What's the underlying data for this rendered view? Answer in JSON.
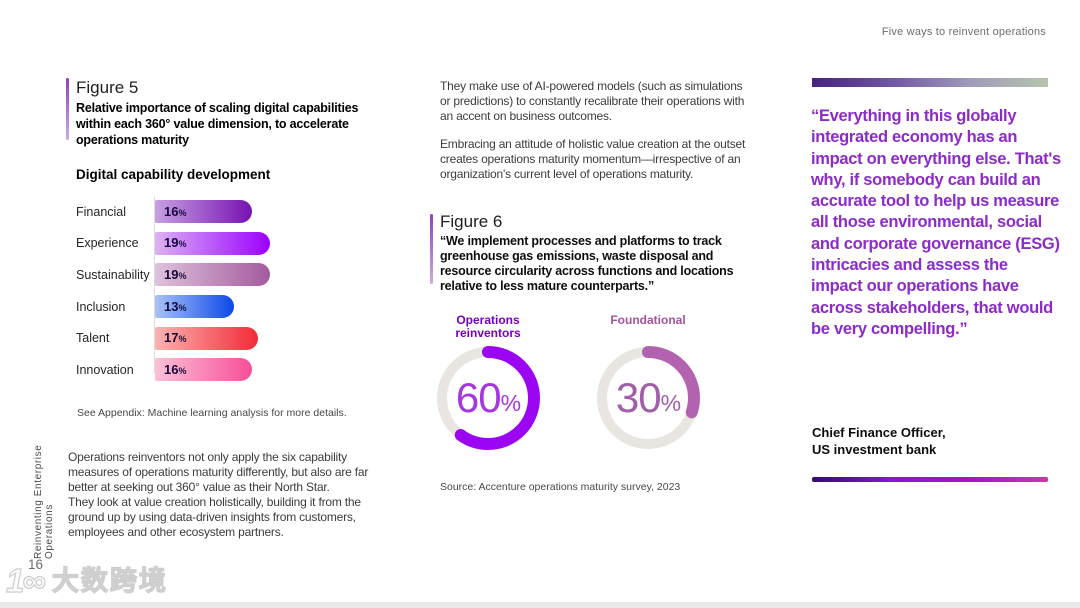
{
  "page": {
    "header": "Five ways to reinvent operations",
    "page_number": "16",
    "sidebar_vertical_text": "Reinventing Enterprise Operations",
    "watermark_logo": "1∞",
    "watermark_text": "大数跨境"
  },
  "theme": {
    "figure_accent": [
      "#8f3fc4",
      "#cfaae2"
    ],
    "top_bar": [
      "#482180",
      "#6f55a4",
      "#9f9ab8",
      "#b6c5ad"
    ],
    "bottom_bar": [
      "#340b6e",
      "#7e1bd4",
      "#a811c8",
      "#c93aa6"
    ]
  },
  "left": {
    "figure_label": "Figure 5",
    "figure_title": "Relative importance of scaling digital capabilities within each 360° value dimension, to accelerate operations maturity",
    "chart_heading": "Digital capability development",
    "footnote": "See Appendix: Machine learning analysis for more details.",
    "paragraph": "Operations reinventors not only apply the six capability measures of operations maturity differently, but also are far better at seeking out 360° value as their North Star.\nThey look at value creation holistically, building it from the ground up by using data-driven insights from customers, employees and other ecosystem partners."
  },
  "middle": {
    "para1": "They make use of AI-powered models (such as simulations or predictions) to constantly recalibrate their operations with an accent on business outcomes.",
    "para2": "Embracing an attitude of holistic value creation at the outset creates operations maturity momentum—irrespective of an organization's current level of operations maturity.",
    "figure_label": "Figure 6",
    "figure_quote": "“We implement processes and platforms to track greenhouse gas emissions, waste disposal and resource circularity across functions and locations relative to less mature counterparts.”",
    "source": "Source: Accenture operations maturity survey, 2023"
  },
  "right": {
    "quote": "“Everything in this globally integrated economy has an impact on everything else. That's why, if somebody can build an accurate tool to help us measure all those environmental, social and corporate governance (ESG) intricacies and assess the impact our operations have across stakeholders, that would be very compelling.”",
    "quote_color": "#8c2bc9",
    "attribution": "Chief Finance Officer,\nUS investment bank"
  },
  "chart_data": [
    {
      "type": "bar",
      "orientation": "horizontal",
      "title": "Digital capability development",
      "categories": [
        "Financial",
        "Experience",
        "Sustainability",
        "Inclusion",
        "Talent",
        "Innovation"
      ],
      "values": [
        16,
        19,
        19,
        13,
        17,
        16
      ],
      "value_labels": [
        "16%",
        "19%",
        "19%",
        "13%",
        "17%",
        "16%"
      ],
      "unit": "%",
      "xlim": [
        0,
        20
      ],
      "grid": false,
      "bar_colors": [
        {
          "from": "#c7a0e2",
          "to": "#7612b1"
        },
        {
          "from": "#dcb2f2",
          "to": "#9b00ff"
        },
        {
          "from": "#dfc2dc",
          "to": "#a35a9e"
        },
        {
          "from": "#a9c3f7",
          "to": "#0c48e8"
        },
        {
          "from": "#fbb3b0",
          "to": "#f22b38"
        },
        {
          "from": "#fcc0d6",
          "to": "#f74f97"
        }
      ],
      "footnote": "See Appendix: Machine learning analysis for more details."
    },
    {
      "type": "pie",
      "variant": "donut",
      "track_color": "#e9e5e0",
      "donuts": [
        {
          "label": "Operations\nreinventors",
          "value": 60,
          "value_label": "60%",
          "arc_color": "#9c05f2",
          "number_color": "#a536e0",
          "label_color": "#7a00bd"
        },
        {
          "label": "Foundational",
          "value": 30,
          "value_label": "30%",
          "arc_color": "#b262ae",
          "number_color": "#a05fa8",
          "label_color": "#a6539e"
        }
      ],
      "source": "Source: Accenture operations maturity survey, 2023"
    }
  ]
}
